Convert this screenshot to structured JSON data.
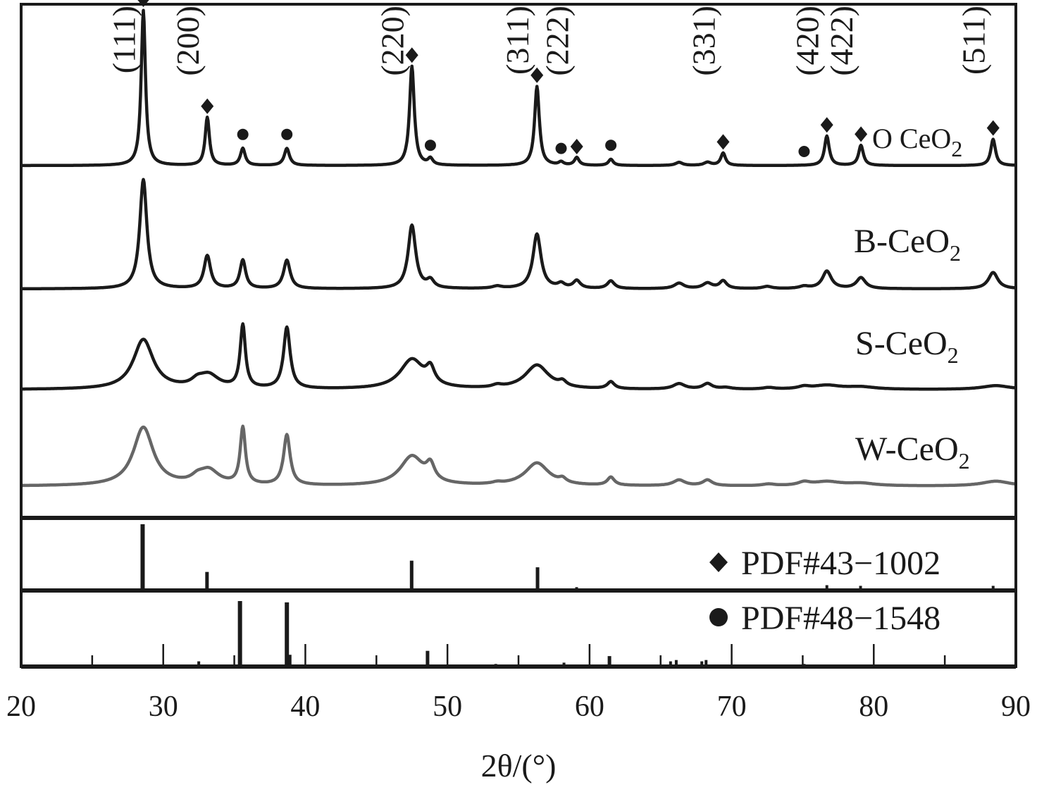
{
  "chart_data": {
    "type": "line",
    "xlabel": "2θ/(°)",
    "xlim": [
      20,
      90
    ],
    "xticks": [
      "20",
      "30",
      "40",
      "50",
      "60",
      "70",
      "80",
      "90"
    ],
    "grid": false,
    "series": [
      {
        "name": "O CeO2",
        "label_main": "O CeO",
        "label_sub": "2",
        "color": "#1a1a1a",
        "peaks": [
          [
            28.6,
            1.0,
            0.18
          ],
          [
            33.1,
            0.31,
            0.18
          ],
          [
            35.6,
            0.11,
            0.2
          ],
          [
            38.7,
            0.11,
            0.22
          ],
          [
            47.5,
            0.64,
            0.2
          ],
          [
            48.8,
            0.04,
            0.2
          ],
          [
            56.3,
            0.51,
            0.2
          ],
          [
            58.0,
            0.02,
            0.2
          ],
          [
            59.1,
            0.05,
            0.2
          ],
          [
            61.5,
            0.04,
            0.2
          ],
          [
            66.3,
            0.02,
            0.3
          ],
          [
            68.3,
            0.02,
            0.3
          ],
          [
            69.4,
            0.08,
            0.2
          ],
          [
            76.7,
            0.19,
            0.2
          ],
          [
            79.1,
            0.13,
            0.2
          ],
          [
            88.4,
            0.17,
            0.2
          ]
        ],
        "diamond_markers": [
          28.6,
          33.1,
          47.5,
          56.3,
          59.1,
          69.4,
          76.7,
          79.1,
          88.4
        ],
        "circle_markers": [
          35.6,
          38.7,
          48.8,
          58.0,
          61.5,
          75.1
        ]
      },
      {
        "name": "B-CeO2",
        "label_main": "B-CeO",
        "label_sub": "2",
        "color": "#1a1a1a",
        "peaks": [
          [
            28.6,
            1.0,
            0.3
          ],
          [
            33.1,
            0.3,
            0.28
          ],
          [
            35.6,
            0.26,
            0.24
          ],
          [
            38.7,
            0.26,
            0.28
          ],
          [
            47.5,
            0.58,
            0.32
          ],
          [
            48.8,
            0.07,
            0.3
          ],
          [
            53.5,
            0.02,
            0.4
          ],
          [
            56.3,
            0.5,
            0.34
          ],
          [
            58.0,
            0.04,
            0.3
          ],
          [
            59.1,
            0.07,
            0.3
          ],
          [
            61.5,
            0.07,
            0.3
          ],
          [
            66.3,
            0.05,
            0.4
          ],
          [
            68.3,
            0.05,
            0.4
          ],
          [
            69.4,
            0.07,
            0.3
          ],
          [
            72.5,
            0.02,
            0.4
          ],
          [
            75.1,
            0.02,
            0.4
          ],
          [
            76.7,
            0.16,
            0.38
          ],
          [
            79.1,
            0.1,
            0.38
          ],
          [
            88.4,
            0.15,
            0.4
          ]
        ]
      },
      {
        "name": "S-CeO2",
        "label_main": "S-CeO",
        "label_sub": "2",
        "color": "#1a1a1a",
        "peaks": [
          [
            28.6,
            0.64,
            0.85
          ],
          [
            32.4,
            0.07,
            0.5
          ],
          [
            33.2,
            0.17,
            0.85
          ],
          [
            35.6,
            0.81,
            0.22
          ],
          [
            38.7,
            0.79,
            0.28
          ],
          [
            47.5,
            0.38,
            1.0
          ],
          [
            48.8,
            0.2,
            0.35
          ],
          [
            53.5,
            0.03,
            0.4
          ],
          [
            56.3,
            0.31,
            1.0
          ],
          [
            58.1,
            0.06,
            0.3
          ],
          [
            61.5,
            0.09,
            0.3
          ],
          [
            66.3,
            0.07,
            0.5
          ],
          [
            68.3,
            0.07,
            0.4
          ],
          [
            69.6,
            0.02,
            0.5
          ],
          [
            72.6,
            0.02,
            0.5
          ],
          [
            75.1,
            0.03,
            0.5
          ],
          [
            76.7,
            0.05,
            1.2
          ],
          [
            79.1,
            0.03,
            1.2
          ],
          [
            88.6,
            0.05,
            1.2
          ]
        ]
      },
      {
        "name": "W-CeO2",
        "label_main": "W-CeO",
        "label_sub": "2",
        "color": "#666666",
        "peaks": [
          [
            28.6,
            0.72,
            0.85
          ],
          [
            32.4,
            0.06,
            0.5
          ],
          [
            33.2,
            0.18,
            0.85
          ],
          [
            35.6,
            0.7,
            0.22
          ],
          [
            38.7,
            0.62,
            0.28
          ],
          [
            47.5,
            0.36,
            1.0
          ],
          [
            48.8,
            0.19,
            0.35
          ],
          [
            53.5,
            0.02,
            0.4
          ],
          [
            56.3,
            0.28,
            1.0
          ],
          [
            58.1,
            0.05,
            0.3
          ],
          [
            61.5,
            0.1,
            0.3
          ],
          [
            66.3,
            0.07,
            0.5
          ],
          [
            68.3,
            0.07,
            0.4
          ],
          [
            72.6,
            0.02,
            0.5
          ],
          [
            75.1,
            0.04,
            0.5
          ],
          [
            76.7,
            0.05,
            1.2
          ],
          [
            79.1,
            0.03,
            1.2
          ],
          [
            88.6,
            0.06,
            1.2
          ]
        ]
      }
    ],
    "reflections": [
      {
        "label": "(111)",
        "x": 28.6
      },
      {
        "label": "(200)",
        "x": 33.1
      },
      {
        "label": "(220)",
        "x": 47.5
      },
      {
        "label": "(311)",
        "x": 56.3
      },
      {
        "label": "(222)",
        "x": 59.1
      },
      {
        "label": "(331)",
        "x": 69.4
      },
      {
        "label": "(420)",
        "x": 76.7
      },
      {
        "label": "(422)",
        "x": 79.1
      },
      {
        "label": "(511)",
        "x": 88.4
      }
    ],
    "references": [
      {
        "name": "PDF#43-1002",
        "label": "PDF#43−1002",
        "marker": "diamond",
        "lines": [
          [
            28.55,
            1.0
          ],
          [
            33.08,
            0.28
          ],
          [
            47.48,
            0.45
          ],
          [
            56.34,
            0.35
          ],
          [
            59.09,
            0.05
          ],
          [
            69.4,
            0.03
          ],
          [
            76.7,
            0.08
          ],
          [
            79.07,
            0.07
          ],
          [
            88.4,
            0.07
          ]
        ]
      },
      {
        "name": "PDF#48-1548",
        "label": "PDF#48−1548",
        "marker": "circle",
        "lines": [
          [
            32.5,
            0.08
          ],
          [
            35.4,
            1.0
          ],
          [
            38.7,
            0.98
          ],
          [
            38.9,
            0.18
          ],
          [
            48.6,
            0.24
          ],
          [
            53.4,
            0.04
          ],
          [
            58.2,
            0.06
          ],
          [
            61.4,
            0.16
          ],
          [
            65.7,
            0.08
          ],
          [
            66.1,
            0.1
          ],
          [
            67.9,
            0.08
          ],
          [
            68.2,
            0.1
          ],
          [
            72.3,
            0.03
          ],
          [
            75.1,
            0.04
          ],
          [
            82.3,
            0.02
          ]
        ]
      }
    ]
  }
}
